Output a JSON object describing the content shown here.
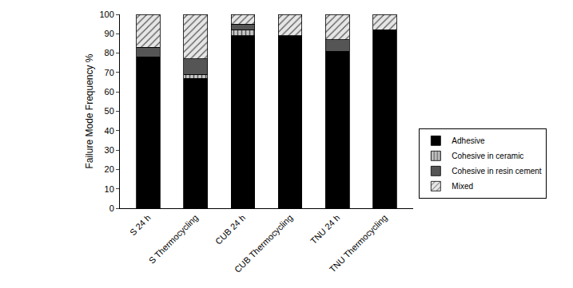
{
  "chart_data": {
    "type": "bar",
    "stacked": true,
    "y_label": "Failure Mode Frequency %",
    "categories": [
      "S 24 h",
      "S Thermocycling",
      "CUB 24 h",
      "CUB Thermocycling",
      "TNU 24 h",
      "TNU Thermocycling"
    ],
    "series": [
      {
        "name": "Adhesive",
        "color": "#000000",
        "values": [
          78,
          67,
          89,
          89,
          81,
          92
        ]
      },
      {
        "name": "Cohesive in ceramic",
        "color": "#c8c8c8",
        "values": [
          0,
          2,
          3,
          0,
          0,
          0
        ]
      },
      {
        "name": "Cohesive in resin cement",
        "color": "#555555",
        "values": [
          5,
          8,
          3,
          0,
          6,
          0
        ]
      },
      {
        "name": "Mixed",
        "color": "#e6e6e6",
        "values": [
          17,
          23,
          5,
          11,
          13,
          8
        ]
      }
    ],
    "ylim": [
      0,
      100
    ],
    "yticks": [
      0,
      10,
      20,
      30,
      40,
      50,
      60,
      70,
      80,
      90,
      100
    ],
    "grid": false,
    "legend": "right"
  }
}
